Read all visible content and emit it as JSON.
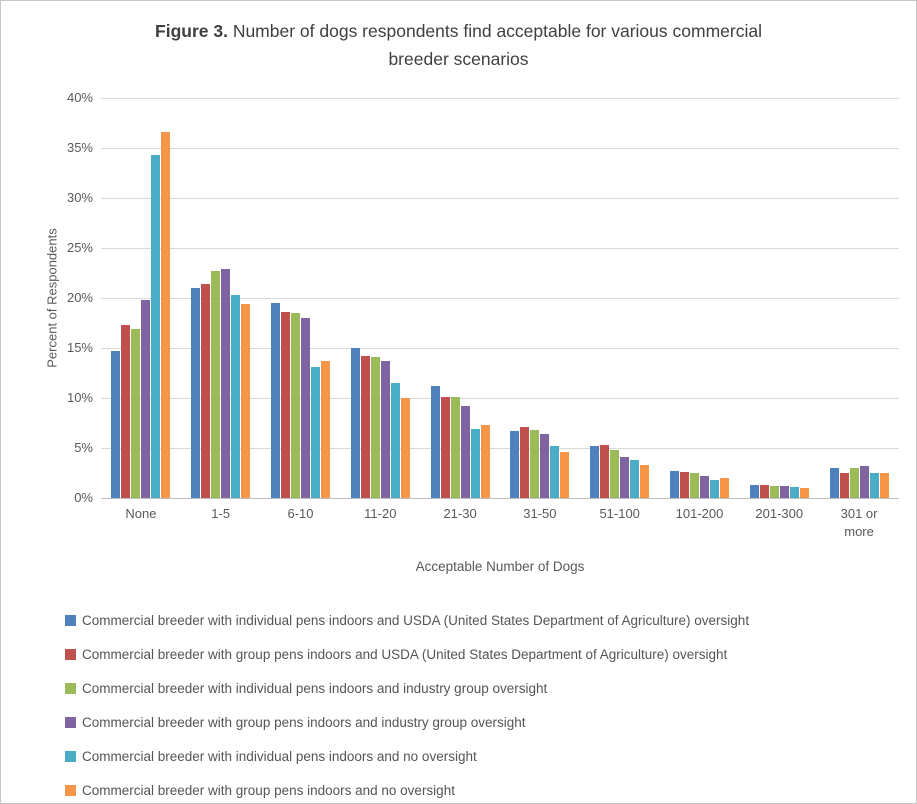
{
  "figure": {
    "title_bold": "Figure 3.",
    "title_text": " Number of dogs respondents find acceptable for various commercial breeder scenarios"
  },
  "chart_data": {
    "type": "bar",
    "title": "Figure 3. Number of dogs respondents find acceptable for various commercial breeder scenarios",
    "xlabel": "Acceptable Number of Dogs",
    "ylabel": "Percent of Respondents",
    "ylim": [
      0,
      40
    ],
    "ytick_step": 5,
    "yticks": [
      "0%",
      "5%",
      "10%",
      "15%",
      "20%",
      "25%",
      "30%",
      "35%",
      "40%"
    ],
    "grid": true,
    "legend_position": "bottom-left",
    "categories": [
      "None",
      "1-5",
      "6-10",
      "11-20",
      "21-30",
      "31-50",
      "51-100",
      "101-200",
      "201-300",
      "301 or more"
    ],
    "series": [
      {
        "name": "Commercial breeder with individual pens indoors and USDA (United States Department of Agriculture)  oversight",
        "color": "#4F81BD",
        "values": [
          14.7,
          21.0,
          19.5,
          15.0,
          11.2,
          6.7,
          5.2,
          2.7,
          1.3,
          3.0
        ]
      },
      {
        "name": "Commercial breeder with group pens indoors and USDA (United States Department of Agriculture) oversight",
        "color": "#C0504D",
        "values": [
          17.3,
          21.4,
          18.6,
          14.2,
          10.1,
          7.1,
          5.3,
          2.6,
          1.3,
          2.5
        ]
      },
      {
        "name": "Commercial breeder with individual pens indoors and industry group oversight",
        "color": "#9BBB59",
        "values": [
          16.9,
          22.7,
          18.5,
          14.1,
          10.1,
          6.8,
          4.8,
          2.5,
          1.2,
          3.0
        ]
      },
      {
        "name": "Commercial breeder with group pens indoors and industry group oversight",
        "color": "#8064A2",
        "values": [
          19.8,
          22.9,
          18.0,
          13.7,
          9.2,
          6.4,
          4.1,
          2.2,
          1.2,
          3.2
        ]
      },
      {
        "name": "Commercial breeder with individual pens indoors and no oversight",
        "color": "#4BACC6",
        "values": [
          34.3,
          20.3,
          13.1,
          11.5,
          6.9,
          5.2,
          3.8,
          1.8,
          1.1,
          2.5
        ]
      },
      {
        "name": "Commercial breeder with group pens indoors and no oversight",
        "color": "#F79646",
        "values": [
          36.6,
          19.4,
          13.7,
          10.0,
          7.3,
          4.6,
          3.3,
          2.0,
          1.0,
          2.5
        ]
      }
    ]
  }
}
